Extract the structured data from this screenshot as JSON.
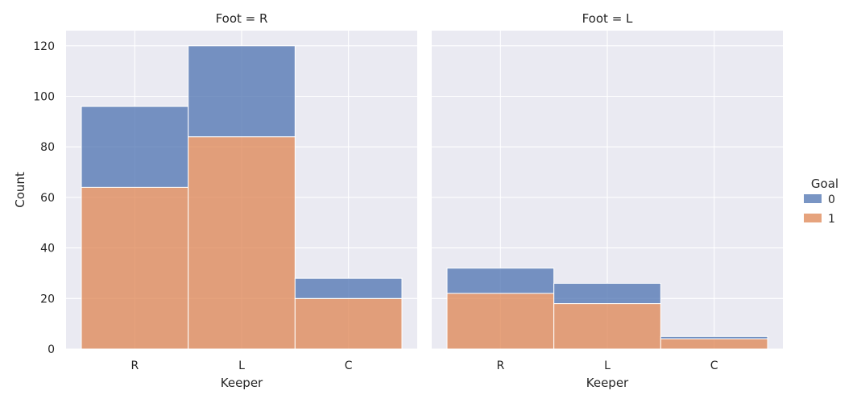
{
  "chart_data": [
    {
      "type": "bar",
      "stacked": true,
      "title": "Foot = R",
      "xlabel": "Keeper",
      "ylabel": "Count",
      "categories": [
        "R",
        "L",
        "C"
      ],
      "series": [
        {
          "name": "1",
          "values": [
            64,
            84,
            20
          ]
        },
        {
          "name": "0",
          "values": [
            32,
            36,
            8
          ]
        }
      ],
      "totals": [
        96,
        120,
        28
      ],
      "ylim": [
        0,
        126
      ],
      "yticks": [
        0,
        20,
        40,
        60,
        80,
        100,
        120
      ],
      "grid": true
    },
    {
      "type": "bar",
      "stacked": true,
      "title": "Foot = L",
      "xlabel": "Keeper",
      "ylabel": "",
      "categories": [
        "R",
        "L",
        "C"
      ],
      "series": [
        {
          "name": "1",
          "values": [
            22,
            18,
            4
          ]
        },
        {
          "name": "0",
          "values": [
            10,
            8,
            1
          ]
        }
      ],
      "totals": [
        32,
        26,
        5
      ],
      "ylim": [
        0,
        126
      ],
      "yticks": [
        0,
        20,
        40,
        60,
        80,
        100,
        120
      ],
      "grid": true
    }
  ],
  "legend": {
    "title": "Goal",
    "placement": "right",
    "items": [
      {
        "label": "0",
        "color": "#4c72b0"
      },
      {
        "label": "1",
        "color": "#dd8452"
      }
    ]
  },
  "colors": {
    "panel_bg": "#eaeaf2",
    "grid": "#ffffff",
    "goal_0": "#4c72b0",
    "goal_1": "#dd8452"
  }
}
